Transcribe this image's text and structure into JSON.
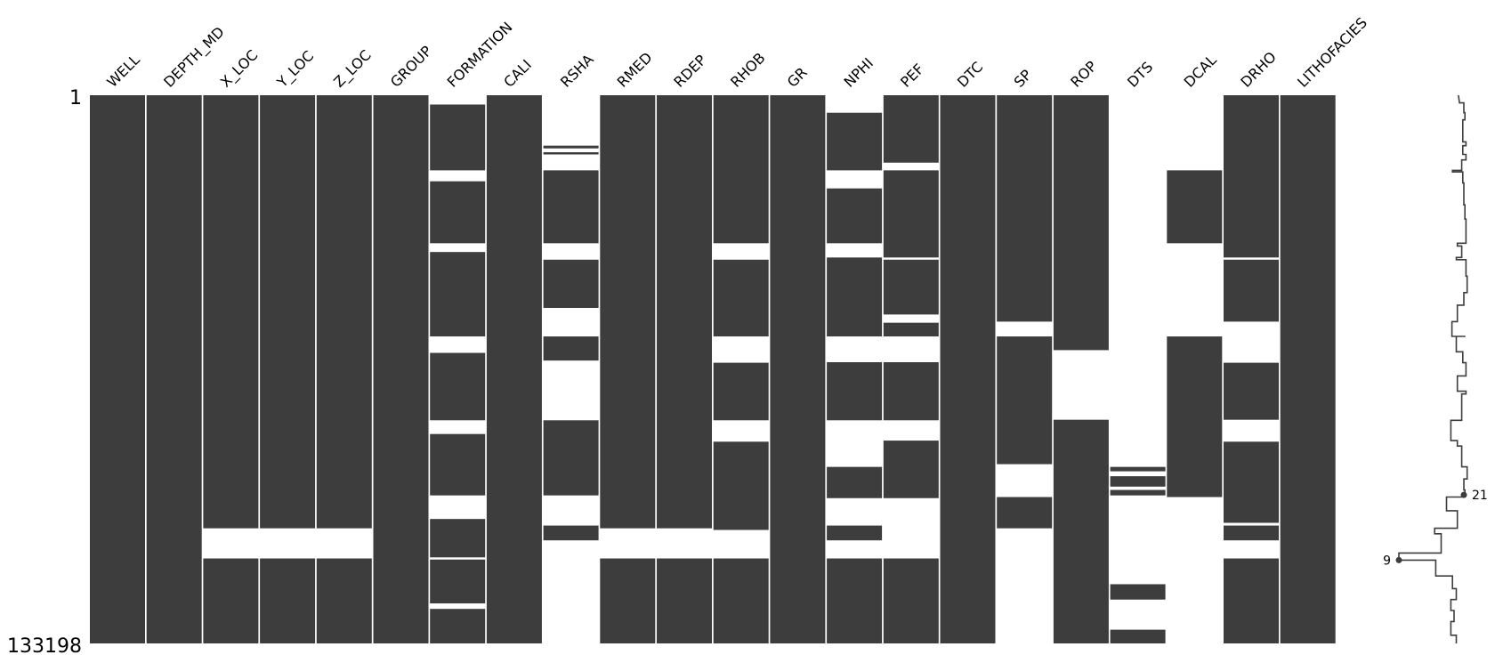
{
  "chart_data": {
    "type": "missingno-matrix",
    "total_rows": 133198,
    "row_tick_labels": [
      "1",
      "133198"
    ],
    "fill_color": "#3d3d3d",
    "columns": [
      {
        "name": "WELL",
        "present": [
          [
            0,
            1
          ]
        ]
      },
      {
        "name": "DEPTH_MD",
        "present": [
          [
            0,
            1
          ]
        ]
      },
      {
        "name": "X_LOC",
        "present": [
          [
            0,
            0.79
          ],
          [
            0.845,
            1
          ]
        ]
      },
      {
        "name": "Y_LOC",
        "present": [
          [
            0,
            0.79
          ],
          [
            0.845,
            1
          ]
        ]
      },
      {
        "name": "Z_LOC",
        "present": [
          [
            0,
            0.79
          ],
          [
            0.845,
            1
          ]
        ]
      },
      {
        "name": "GROUP",
        "present": [
          [
            0,
            1
          ]
        ]
      },
      {
        "name": "FORMATION",
        "present": [
          [
            0.017,
            0.137
          ],
          [
            0.157,
            0.27
          ],
          [
            0.286,
            0.44
          ],
          [
            0.47,
            0.593
          ],
          [
            0.618,
            0.73
          ],
          [
            0.773,
            0.843
          ],
          [
            0.847,
            0.927
          ],
          [
            0.937,
            1
          ]
        ]
      },
      {
        "name": "CALI",
        "present": [
          [
            0,
            1
          ]
        ]
      },
      {
        "name": "RSHA",
        "present": [
          [
            0.092,
            0.097
          ],
          [
            0.104,
            0.108
          ],
          [
            0.137,
            0.27
          ],
          [
            0.3,
            0.388
          ],
          [
            0.44,
            0.484
          ],
          [
            0.593,
            0.73
          ],
          [
            0.785,
            0.812
          ]
        ]
      },
      {
        "name": "RMED",
        "present": [
          [
            0,
            0.79
          ],
          [
            0.845,
            1
          ]
        ]
      },
      {
        "name": "RDEP",
        "present": [
          [
            0,
            0.79
          ],
          [
            0.845,
            1
          ]
        ]
      },
      {
        "name": "RHOB",
        "present": [
          [
            0,
            0.27
          ],
          [
            0.3,
            0.44
          ],
          [
            0.488,
            0.593
          ],
          [
            0.632,
            0.793
          ],
          [
            0.845,
            1
          ]
        ]
      },
      {
        "name": "GR",
        "present": [
          [
            0,
            1
          ]
        ]
      },
      {
        "name": "NPHI",
        "present": [
          [
            0.032,
            0.137
          ],
          [
            0.17,
            0.27
          ],
          [
            0.296,
            0.44
          ],
          [
            0.487,
            0.593
          ],
          [
            0.678,
            0.735
          ],
          [
            0.785,
            0.812
          ],
          [
            0.845,
            1
          ]
        ]
      },
      {
        "name": "PEF",
        "present": [
          [
            0,
            0.123
          ],
          [
            0.137,
            0.296
          ],
          [
            0.3,
            0.4
          ],
          [
            0.415,
            0.44
          ],
          [
            0.487,
            0.593
          ],
          [
            0.63,
            0.735
          ],
          [
            0.845,
            1
          ]
        ]
      },
      {
        "name": "DTC",
        "present": [
          [
            0,
            1
          ]
        ]
      },
      {
        "name": "SP",
        "present": [
          [
            0,
            0.413
          ],
          [
            0.44,
            0.673
          ],
          [
            0.733,
            0.79
          ]
        ]
      },
      {
        "name": "ROP",
        "present": [
          [
            0,
            0.465
          ],
          [
            0.592,
            1
          ]
        ]
      },
      {
        "name": "DTS",
        "present": [
          [
            0.678,
            0.686
          ],
          [
            0.695,
            0.714
          ],
          [
            0.72,
            0.73
          ],
          [
            0.892,
            0.92
          ],
          [
            0.975,
            1
          ]
        ]
      },
      {
        "name": "DCAL",
        "present": [
          [
            0.137,
            0.27
          ],
          [
            0.44,
            0.733
          ]
        ]
      },
      {
        "name": "DRHO",
        "present": [
          [
            0,
            0.296
          ],
          [
            0.3,
            0.413
          ],
          [
            0.488,
            0.592
          ],
          [
            0.632,
            0.78
          ],
          [
            0.785,
            0.812
          ],
          [
            0.845,
            1
          ]
        ]
      },
      {
        "name": "LITHOFACIES",
        "present": [
          [
            0,
            1
          ]
        ]
      }
    ],
    "sparkline": {
      "min_label": "9",
      "max_label": "21",
      "min_value": 9,
      "max_value": 21,
      "min_row_fraction": 0.848,
      "max_row_fraction": 0.729,
      "points": [
        [
          0,
          20
        ],
        [
          0.014,
          20.2
        ],
        [
          0.014,
          21
        ],
        [
          0.032,
          21
        ],
        [
          0.032,
          21.2
        ],
        [
          0.045,
          21.2
        ],
        [
          0.045,
          20.8
        ],
        [
          0.085,
          20.8
        ],
        [
          0.085,
          21.4
        ],
        [
          0.092,
          21.4
        ],
        [
          0.092,
          20.8
        ],
        [
          0.108,
          20.8
        ],
        [
          0.108,
          21.4
        ],
        [
          0.118,
          21.4
        ],
        [
          0.118,
          20.6
        ],
        [
          0.137,
          20.6
        ],
        [
          0.137,
          18.9
        ],
        [
          0.14,
          18.9
        ],
        [
          0.14,
          20.8
        ],
        [
          0.16,
          20.8
        ],
        [
          0.16,
          21
        ],
        [
          0.2,
          21
        ],
        [
          0.2,
          21.2
        ],
        [
          0.226,
          21.2
        ],
        [
          0.226,
          21.4
        ],
        [
          0.27,
          21.4
        ],
        [
          0.27,
          20.8
        ],
        [
          0.27,
          19.8
        ],
        [
          0.275,
          19.8
        ],
        [
          0.275,
          20.6
        ],
        [
          0.296,
          20.6
        ],
        [
          0.296,
          19.6
        ],
        [
          0.3,
          19.6
        ],
        [
          0.3,
          21.4
        ],
        [
          0.33,
          21.4
        ],
        [
          0.33,
          21.6
        ],
        [
          0.36,
          21.6
        ],
        [
          0.36,
          21
        ],
        [
          0.383,
          21
        ],
        [
          0.383,
          19.8
        ],
        [
          0.413,
          19.8
        ],
        [
          0.413,
          18.8
        ],
        [
          0.44,
          18.8
        ],
        [
          0.44,
          21.3
        ],
        [
          0.44,
          19.6
        ],
        [
          0.468,
          19.6
        ],
        [
          0.468,
          20.8
        ],
        [
          0.488,
          20.8
        ],
        [
          0.488,
          21.4
        ],
        [
          0.512,
          21.4
        ],
        [
          0.512,
          19.8
        ],
        [
          0.54,
          19.8
        ],
        [
          0.54,
          21.4
        ],
        [
          0.545,
          21.4
        ],
        [
          0.545,
          20.6
        ],
        [
          0.593,
          20.6
        ],
        [
          0.593,
          18.6
        ],
        [
          0.63,
          18.6
        ],
        [
          0.63,
          19.8
        ],
        [
          0.64,
          19.8
        ],
        [
          0.64,
          20.6
        ],
        [
          0.678,
          20.6
        ],
        [
          0.678,
          21.6
        ],
        [
          0.7,
          21.6
        ],
        [
          0.7,
          21
        ],
        [
          0.72,
          21
        ],
        [
          0.72,
          21.2
        ],
        [
          0.729,
          21.2
        ],
        [
          0.729,
          21
        ],
        [
          0.733,
          21
        ],
        [
          0.733,
          17.8
        ],
        [
          0.758,
          17.8
        ],
        [
          0.758,
          19.8
        ],
        [
          0.79,
          19.8
        ],
        [
          0.79,
          15.6
        ],
        [
          0.8,
          15.6
        ],
        [
          0.8,
          16.8
        ],
        [
          0.835,
          16.8
        ],
        [
          0.835,
          9
        ],
        [
          0.848,
          9
        ],
        [
          0.848,
          15.8
        ],
        [
          0.877,
          15.8
        ],
        [
          0.877,
          18.9
        ],
        [
          0.9,
          18.9
        ],
        [
          0.9,
          19.6
        ],
        [
          0.92,
          19.6
        ],
        [
          0.92,
          18.6
        ],
        [
          0.94,
          18.6
        ],
        [
          0.94,
          19.2
        ],
        [
          0.96,
          19.2
        ],
        [
          0.96,
          18.6
        ],
        [
          0.985,
          18.6
        ],
        [
          0.985,
          19.6
        ],
        [
          1,
          19.6
        ]
      ]
    }
  }
}
